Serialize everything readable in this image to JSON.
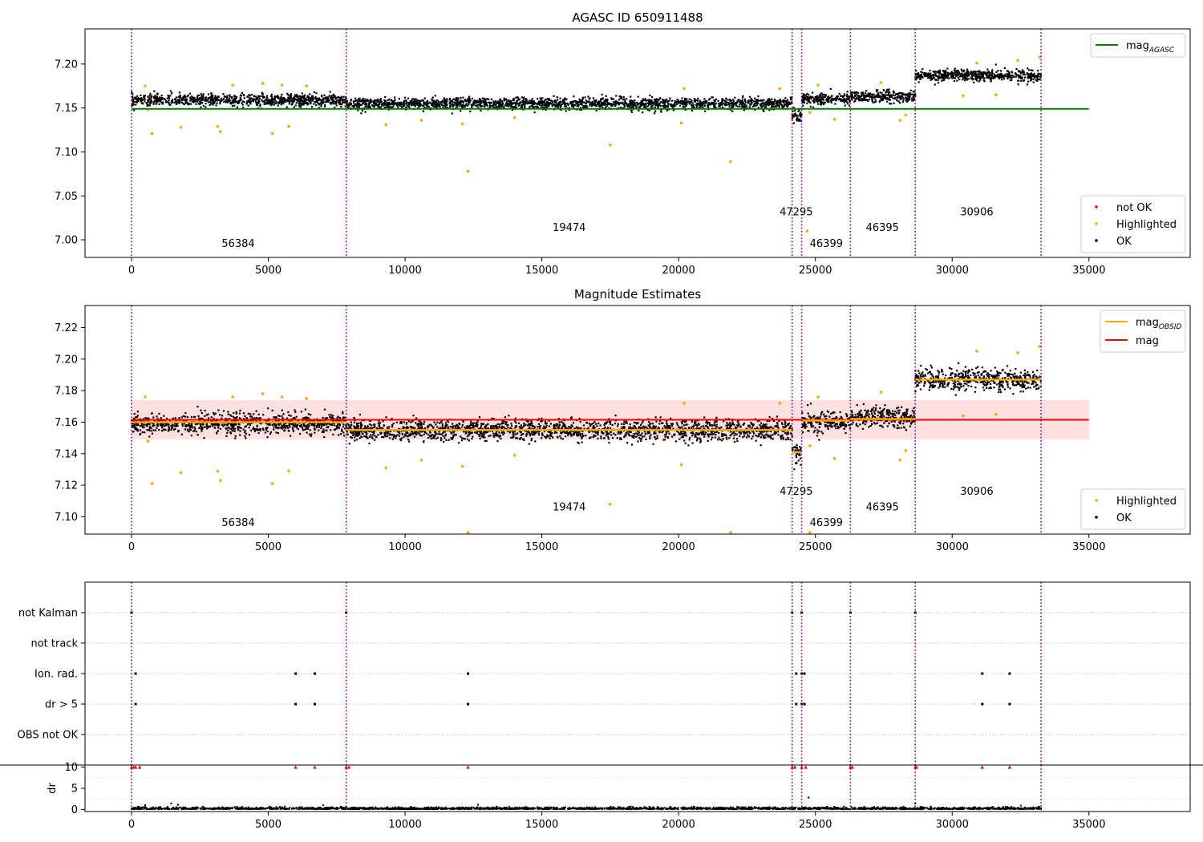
{
  "figure_title": "AGASC ID 650911488",
  "chart_data": [
    {
      "type": "scatter",
      "title": "AGASC ID 650911488",
      "xlim": [
        -1700,
        38700
      ],
      "ylim": [
        6.98,
        7.24
      ],
      "x_ticks": [
        0,
        5000,
        10000,
        15000,
        20000,
        25000,
        30000,
        35000
      ],
      "y_ticks": [
        7.0,
        7.05,
        7.1,
        7.15,
        7.2
      ],
      "y_tick_labels": [
        "7.00",
        "7.05",
        "7.10",
        "7.15",
        "7.20"
      ],
      "grid": false,
      "obsid_boundaries": [
        0,
        7850,
        24150,
        24500,
        26280,
        28650,
        33250
      ],
      "obsid_labels": [
        {
          "text": "56384",
          "x": 3900,
          "y": 6.992
        },
        {
          "text": "19474",
          "x": 16000,
          "y": 7.01
        },
        {
          "text": "47295",
          "x": 24300,
          "y": 7.028
        },
        {
          "text": "46399",
          "x": 25400,
          "y": 6.992
        },
        {
          "text": "46395",
          "x": 27450,
          "y": 7.01
        },
        {
          "text": "30906",
          "x": 30900,
          "y": 7.028
        }
      ],
      "segments": [
        {
          "x": [
            0,
            7850
          ],
          "mean": 7.159,
          "spread": 0.006
        },
        {
          "x": [
            7850,
            24150
          ],
          "mean": 7.155,
          "spread": 0.006
        },
        {
          "x": [
            24150,
            24500
          ],
          "mean": 7.141,
          "spread": 0.007
        },
        {
          "x": [
            24500,
            26280
          ],
          "mean": 7.16,
          "spread": 0.006
        },
        {
          "x": [
            26280,
            28650
          ],
          "mean": 7.163,
          "spread": 0.006
        },
        {
          "x": [
            28650,
            33250
          ],
          "mean": 7.187,
          "spread": 0.006
        }
      ],
      "mag_agasc": {
        "value": 7.149,
        "x": [
          0,
          35000
        ],
        "color": "#008000"
      },
      "highlighted_points": [
        [
          600,
          7.148
        ],
        [
          750,
          7.121
        ],
        [
          1800,
          7.128
        ],
        [
          3150,
          7.129
        ],
        [
          3250,
          7.123
        ],
        [
          5150,
          7.121
        ],
        [
          5750,
          7.129
        ],
        [
          500,
          7.175
        ],
        [
          3700,
          7.176
        ],
        [
          4800,
          7.178
        ],
        [
          5500,
          7.176
        ],
        [
          6400,
          7.175
        ],
        [
          9300,
          7.131
        ],
        [
          10600,
          7.136
        ],
        [
          12100,
          7.132
        ],
        [
          12300,
          7.078
        ],
        [
          14000,
          7.139
        ],
        [
          17500,
          7.108
        ],
        [
          20100,
          7.133
        ],
        [
          20200,
          7.172
        ],
        [
          21900,
          7.089
        ],
        [
          23700,
          7.172
        ],
        [
          24800,
          7.145
        ],
        [
          25100,
          7.176
        ],
        [
          25700,
          7.137
        ],
        [
          27400,
          7.179
        ],
        [
          28100,
          7.136
        ],
        [
          28300,
          7.142
        ],
        [
          30400,
          7.164
        ],
        [
          31600,
          7.165
        ],
        [
          33200,
          7.208
        ],
        [
          30900,
          7.201
        ],
        [
          32400,
          7.204
        ],
        [
          24700,
          7.01
        ]
      ],
      "legend_top": {
        "placement": "top-right",
        "entries": [
          {
            "label": "mag",
            "sub": "AGASC",
            "color": "#008000"
          }
        ]
      },
      "legend_bottom": {
        "placement": "bottom-right",
        "entries": [
          {
            "label": "not OK",
            "color": "#ff0000"
          },
          {
            "label": "Highlighted",
            "color": "#ffa500"
          },
          {
            "label": "OK",
            "color": "#000000"
          }
        ]
      }
    },
    {
      "type": "scatter",
      "title": "Magnitude Estimates",
      "xlim": [
        -1700,
        38700
      ],
      "ylim": [
        7.089,
        7.234
      ],
      "x_ticks": [
        0,
        5000,
        10000,
        15000,
        20000,
        25000,
        30000,
        35000
      ],
      "y_ticks": [
        7.1,
        7.12,
        7.14,
        7.16,
        7.18,
        7.2,
        7.22
      ],
      "y_tick_labels": [
        "7.10",
        "7.12",
        "7.14",
        "7.16",
        "7.18",
        "7.20",
        "7.22"
      ],
      "grid": false,
      "obsid_boundaries": [
        0,
        7850,
        24150,
        24500,
        26280,
        28650,
        33250
      ],
      "obsid_labels": [
        {
          "text": "56384",
          "x": 3900,
          "y": 7.094
        },
        {
          "text": "19474",
          "x": 16000,
          "y": 7.104
        },
        {
          "text": "47295",
          "x": 24300,
          "y": 7.114
        },
        {
          "text": "46399",
          "x": 25400,
          "y": 7.094
        },
        {
          "text": "46395",
          "x": 27450,
          "y": 7.104
        },
        {
          "text": "30906",
          "x": 30900,
          "y": 7.114
        }
      ],
      "segments": [
        {
          "x": [
            0,
            7850
          ],
          "mean": 7.159,
          "spread": 0.006
        },
        {
          "x": [
            7850,
            24150
          ],
          "mean": 7.155,
          "spread": 0.006
        },
        {
          "x": [
            24150,
            24500
          ],
          "mean": 7.141,
          "spread": 0.007
        },
        {
          "x": [
            24500,
            26280
          ],
          "mean": 7.16,
          "spread": 0.006
        },
        {
          "x": [
            26280,
            28650
          ],
          "mean": 7.163,
          "spread": 0.006
        },
        {
          "x": [
            28650,
            33250
          ],
          "mean": 7.187,
          "spread": 0.006
        }
      ],
      "mag_obsid": [
        {
          "x": [
            0,
            7850
          ],
          "value": 7.16
        },
        {
          "x": [
            7850,
            24150
          ],
          "value": 7.155
        },
        {
          "x": [
            24150,
            24500
          ],
          "value": 7.141
        },
        {
          "x": [
            24500,
            26280
          ],
          "value": 7.161
        },
        {
          "x": [
            26280,
            28650
          ],
          "value": 7.162
        },
        {
          "x": [
            28650,
            33250
          ],
          "value": 7.187
        }
      ],
      "mag": {
        "value": 7.1615,
        "x": [
          0,
          35000
        ],
        "band": [
          7.149,
          7.174
        ],
        "color": "#ff0000"
      },
      "highlighted_points": [
        [
          600,
          7.148
        ],
        [
          750,
          7.121
        ],
        [
          1800,
          7.128
        ],
        [
          3150,
          7.129
        ],
        [
          3250,
          7.123
        ],
        [
          5150,
          7.121
        ],
        [
          5750,
          7.129
        ],
        [
          500,
          7.176
        ],
        [
          3700,
          7.176
        ],
        [
          4800,
          7.178
        ],
        [
          5500,
          7.176
        ],
        [
          6400,
          7.175
        ],
        [
          9300,
          7.131
        ],
        [
          10600,
          7.136
        ],
        [
          12100,
          7.132
        ],
        [
          12300,
          7.09
        ],
        [
          14000,
          7.139
        ],
        [
          17500,
          7.108
        ],
        [
          20100,
          7.133
        ],
        [
          20200,
          7.172
        ],
        [
          21900,
          7.09
        ],
        [
          23700,
          7.172
        ],
        [
          24800,
          7.145
        ],
        [
          25100,
          7.176
        ],
        [
          25700,
          7.137
        ],
        [
          27400,
          7.179
        ],
        [
          28100,
          7.136
        ],
        [
          28300,
          7.142
        ],
        [
          30400,
          7.164
        ],
        [
          31600,
          7.165
        ],
        [
          33200,
          7.208
        ],
        [
          30900,
          7.205
        ],
        [
          32400,
          7.204
        ],
        [
          24800,
          7.09
        ]
      ],
      "legend_top": {
        "placement": "top-right",
        "entries": [
          {
            "label": "mag",
            "sub": "OBSID",
            "color": "#ffa500"
          },
          {
            "label": "mag",
            "sub": "",
            "color": "#ff0000"
          }
        ]
      },
      "legend_bottom": {
        "placement": "bottom-right",
        "entries": [
          {
            "label": "Highlighted",
            "color": "#ffa500"
          },
          {
            "label": "OK",
            "color": "#000000"
          }
        ]
      }
    },
    {
      "type": "scatter",
      "title": "",
      "xlim": [
        -1700,
        38700
      ],
      "flag_rows": [
        "not Kalman",
        "not track",
        "Ion. rad.",
        "dr > 5",
        "OBS not OK"
      ],
      "flags": {
        "not Kalman": [
          0,
          7850,
          24150,
          24500,
          26280,
          28650
        ],
        "not track": [],
        "Ion. rad.": [
          150,
          6000,
          6700,
          12300,
          24300,
          24500,
          24600,
          31100,
          32100
        ],
        "dr > 5": [
          150,
          6000,
          6700,
          12300,
          24300,
          24500,
          24600,
          31100,
          32100
        ],
        "OBS not OK": []
      },
      "obsid_boundaries": [
        0,
        7850,
        24150,
        24500,
        26280,
        28650,
        33250
      ]
    },
    {
      "type": "scatter",
      "title": "",
      "xlim": [
        -1700,
        38700
      ],
      "ylim": [
        -0.5,
        10.5
      ],
      "x_ticks": [
        0,
        5000,
        10000,
        15000,
        20000,
        25000,
        30000,
        35000
      ],
      "y_ticks": [
        0,
        5,
        10
      ],
      "y_tick_labels": [
        "0",
        "5",
        "10"
      ],
      "ylabel": "dr",
      "obsid_boundaries": [
        0,
        7850,
        24150,
        24500,
        26280,
        28650,
        33250
      ],
      "dr_capped_x": [
        0,
        80,
        150,
        300,
        6000,
        6700,
        7850,
        7950,
        12300,
        24150,
        24250,
        24500,
        24650,
        26280,
        26350,
        28650,
        28700,
        31100,
        32100
      ],
      "dr_outliers": [
        [
          1450,
          1.4
        ],
        [
          1700,
          1.1
        ],
        [
          24750,
          2.8
        ],
        [
          500,
          1.0
        ],
        [
          28650,
          1.4
        ]
      ]
    }
  ]
}
